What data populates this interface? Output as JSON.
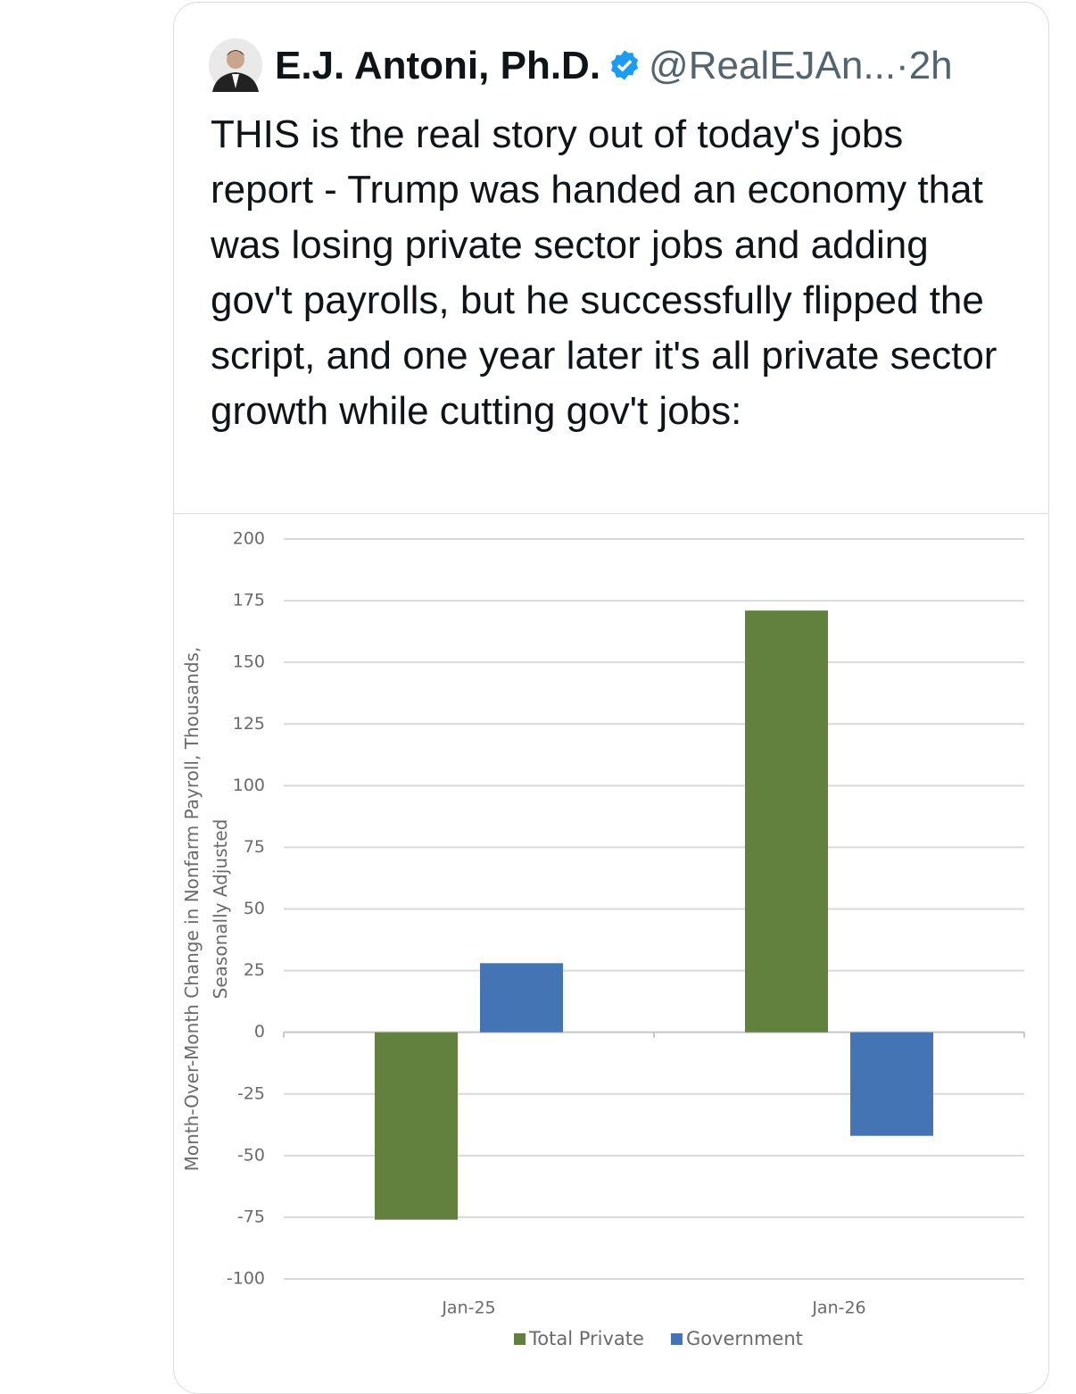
{
  "tweet": {
    "author": "E.J. Antoni, Ph.D.",
    "handle": "@RealEJAn...",
    "separator": "·",
    "time": "2h",
    "text": "THIS is the real story out of today's jobs report - Trump was handed an economy that was losing private sector jobs and adding gov't payrolls, but he successfully flipped the script, and one year later it's all private sector growth while cutting gov't jobs:"
  },
  "chart_data": {
    "type": "bar",
    "y_label": [
      "Month-Over-Month Change in Nonfarm Payroll, Thousands,",
      "Seasonally Adjusted"
    ],
    "categories": [
      "Jan-25",
      "Jan-26"
    ],
    "series": [
      {
        "name": "Total Private",
        "color": "#62813f",
        "values": [
          -76,
          171
        ]
      },
      {
        "name": "Government",
        "color": "#4474b4",
        "values": [
          28,
          -42
        ]
      }
    ],
    "ylim": [
      -100,
      200
    ],
    "yticks": [
      -100,
      -75,
      -50,
      -25,
      0,
      25,
      50,
      75,
      100,
      125,
      150,
      175,
      200
    ],
    "grid": true,
    "legend": "bottom"
  }
}
